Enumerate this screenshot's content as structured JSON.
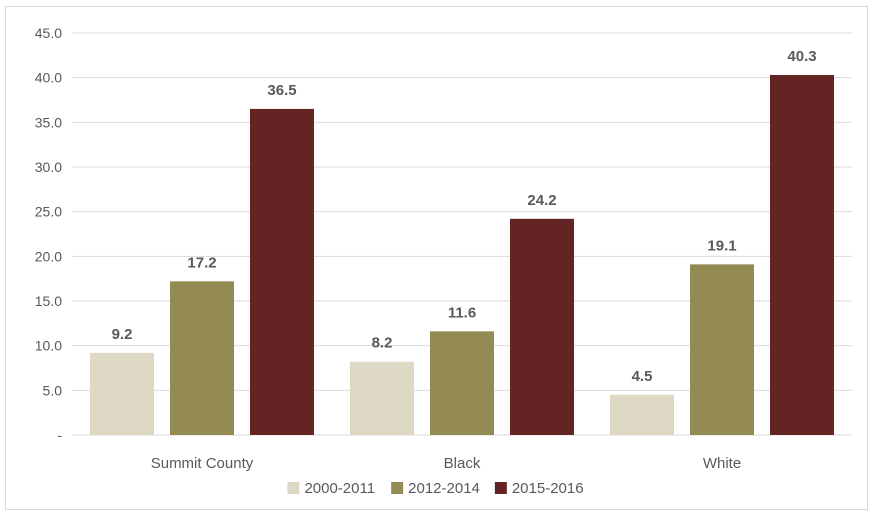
{
  "chart_data": {
    "type": "bar",
    "categories": [
      "Summit County",
      "Black",
      "White"
    ],
    "series": [
      {
        "name": "2000-2011",
        "values": [
          9.2,
          8.2,
          4.5
        ],
        "color": "#ddd9c4"
      },
      {
        "name": "2012-2014",
        "values": [
          17.2,
          11.6,
          19.1
        ],
        "color": "#948a54"
      },
      {
        "name": "2015-2016",
        "values": [
          36.5,
          24.2,
          40.3
        ],
        "color": "#632423"
      }
    ],
    "y_ticks": [
      "-",
      "5.0",
      "10.0",
      "15.0",
      "20.0",
      "25.0",
      "30.0",
      "35.0",
      "40.0",
      "45.0"
    ],
    "ylim": [
      0,
      45
    ],
    "grid": true,
    "legend_position": "bottom",
    "title": "",
    "xlabel": "",
    "ylabel": ""
  }
}
